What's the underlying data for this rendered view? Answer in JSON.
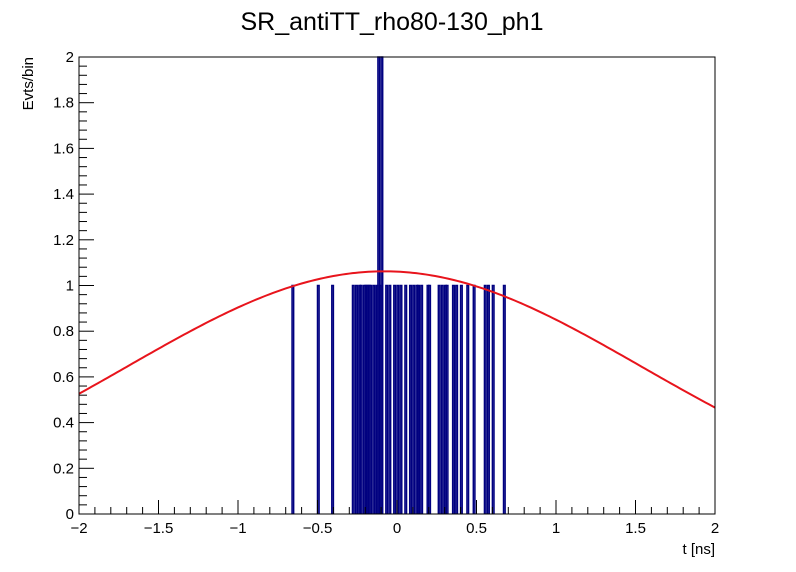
{
  "chart_data": {
    "type": "histogram",
    "title": "SR_antiTT_rho80-130_ph1",
    "xlabel": "t [ns]",
    "ylabel": "Evts/bin",
    "xlim": [
      -2,
      2
    ],
    "ylim": [
      0,
      2
    ],
    "x_ticks": [
      -2,
      -1.5,
      -1,
      -0.5,
      0,
      0.5,
      1,
      1.5,
      2
    ],
    "x_tick_labels": [
      "−2",
      "−1.5",
      "−1",
      "−0.5",
      "0",
      "0.5",
      "1",
      "1.5",
      "2"
    ],
    "y_ticks": [
      0,
      0.2,
      0.4,
      0.6,
      0.8,
      1,
      1.2,
      1.4,
      1.6,
      1.8,
      2
    ],
    "y_tick_labels": [
      "0",
      "0.2",
      "0.4",
      "0.6",
      "0.8",
      "1",
      "1.2",
      "1.4",
      "1.6",
      "1.8",
      "2"
    ],
    "grid": false,
    "bin_width": 0.01,
    "bins": [
      {
        "x": -0.66,
        "y": 1
      },
      {
        "x": -0.5,
        "y": 1
      },
      {
        "x": -0.41,
        "y": 1
      },
      {
        "x": -0.28,
        "y": 1
      },
      {
        "x": -0.26,
        "y": 1
      },
      {
        "x": -0.24,
        "y": 1
      },
      {
        "x": -0.23,
        "y": 1
      },
      {
        "x": -0.21,
        "y": 1
      },
      {
        "x": -0.2,
        "y": 1
      },
      {
        "x": -0.19,
        "y": 1
      },
      {
        "x": -0.18,
        "y": 1
      },
      {
        "x": -0.17,
        "y": 1
      },
      {
        "x": -0.15,
        "y": 1
      },
      {
        "x": -0.13,
        "y": 1
      },
      {
        "x": -0.12,
        "y": 2
      },
      {
        "x": -0.11,
        "y": 1
      },
      {
        "x": -0.1,
        "y": 2
      },
      {
        "x": -0.07,
        "y": 1
      },
      {
        "x": -0.05,
        "y": 1
      },
      {
        "x": -0.02,
        "y": 1
      },
      {
        "x": 0.0,
        "y": 1
      },
      {
        "x": 0.02,
        "y": 1
      },
      {
        "x": 0.05,
        "y": 1
      },
      {
        "x": 0.08,
        "y": 1
      },
      {
        "x": 0.1,
        "y": 1
      },
      {
        "x": 0.12,
        "y": 1
      },
      {
        "x": 0.13,
        "y": 1
      },
      {
        "x": 0.15,
        "y": 1
      },
      {
        "x": 0.19,
        "y": 1
      },
      {
        "x": 0.2,
        "y": 1
      },
      {
        "x": 0.26,
        "y": 1
      },
      {
        "x": 0.28,
        "y": 1
      },
      {
        "x": 0.3,
        "y": 1
      },
      {
        "x": 0.31,
        "y": 1
      },
      {
        "x": 0.35,
        "y": 1
      },
      {
        "x": 0.37,
        "y": 1
      },
      {
        "x": 0.4,
        "y": 1
      },
      {
        "x": 0.44,
        "y": 1
      },
      {
        "x": 0.48,
        "y": 1
      },
      {
        "x": 0.55,
        "y": 1
      },
      {
        "x": 0.57,
        "y": 1
      },
      {
        "x": 0.6,
        "y": 1
      },
      {
        "x": 0.67,
        "y": 1
      }
    ],
    "fit_curve": {
      "function": "gaussian",
      "amplitude": 1.062,
      "mean": -0.08,
      "sigma": 1.62,
      "x_range": [
        -2,
        2
      ]
    },
    "colors": {
      "histogram": "#000080",
      "fit": "#e8141c",
      "axes": "#000000",
      "background": "#ffffff"
    }
  }
}
